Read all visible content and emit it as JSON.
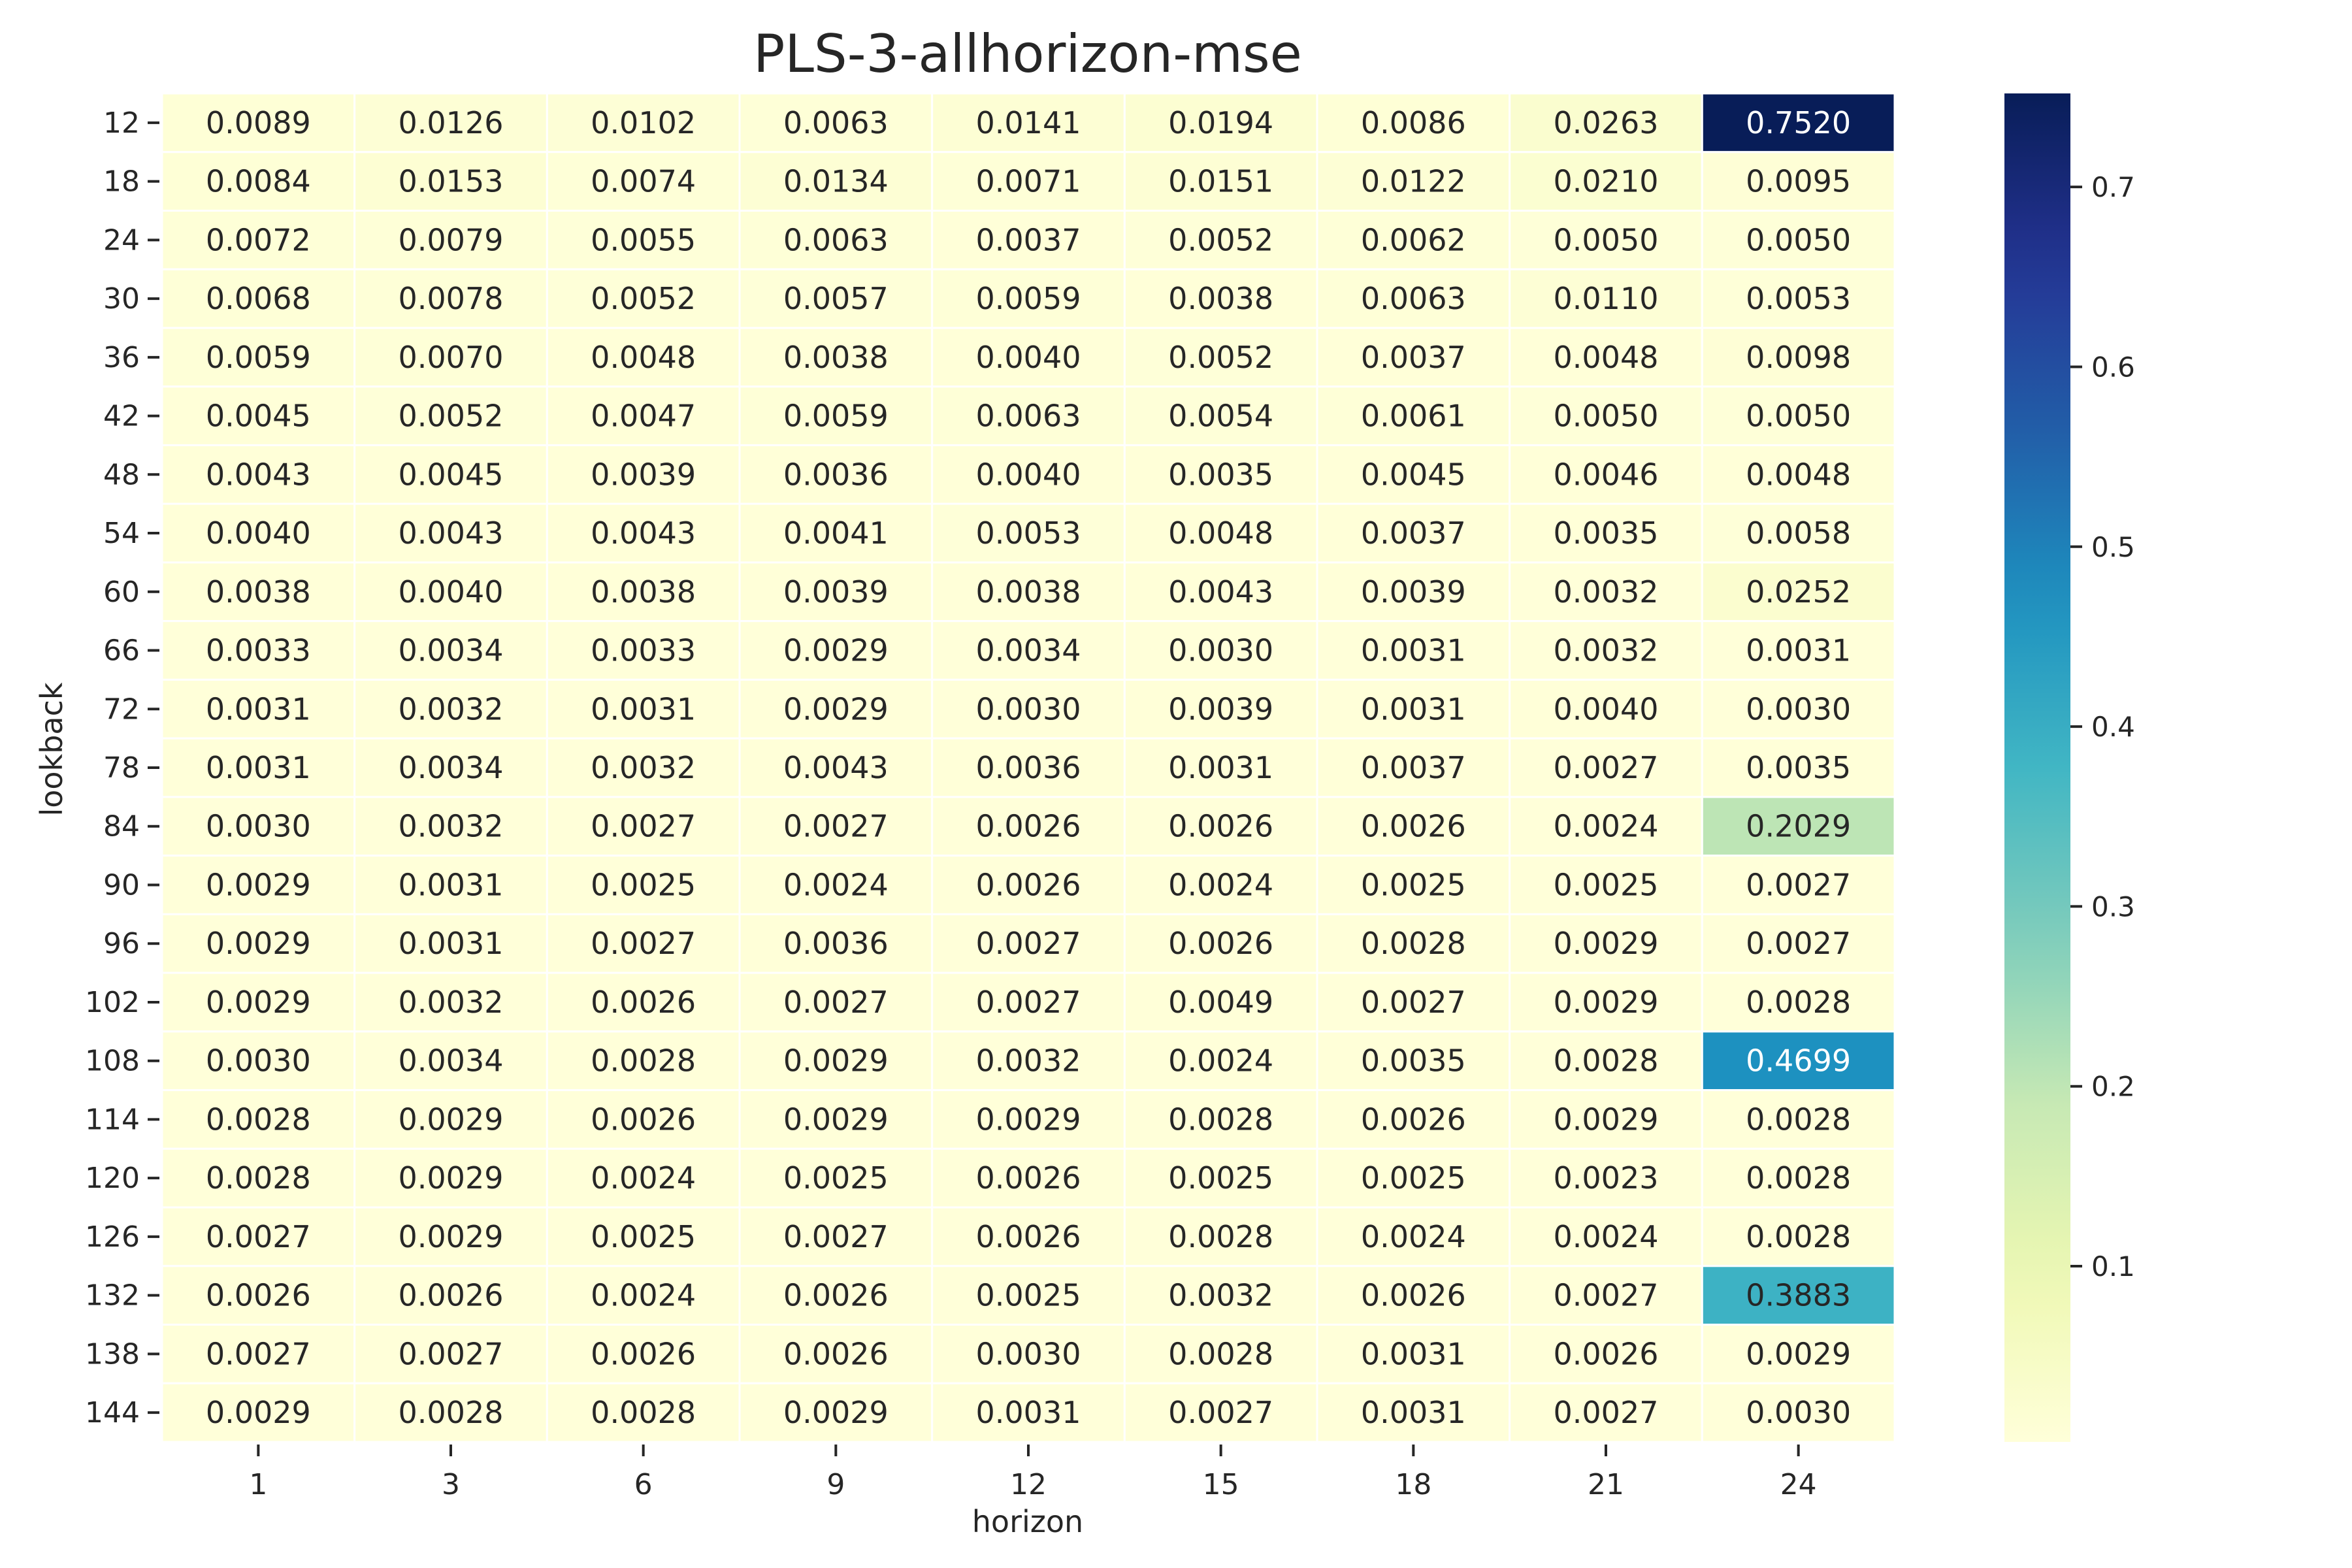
{
  "chart_data": {
    "type": "heatmap",
    "title": "PLS-3-allhorizon-mse",
    "xlabel": "horizon",
    "ylabel": "lookback",
    "x": [
      "1",
      "3",
      "6",
      "9",
      "12",
      "15",
      "18",
      "21",
      "24"
    ],
    "y": [
      "12",
      "18",
      "24",
      "30",
      "36",
      "42",
      "48",
      "54",
      "60",
      "66",
      "72",
      "78",
      "84",
      "90",
      "96",
      "102",
      "108",
      "114",
      "120",
      "126",
      "132",
      "138",
      "144"
    ],
    "values": [
      [
        0.0089,
        0.0126,
        0.0102,
        0.0063,
        0.0141,
        0.0194,
        0.0086,
        0.0263,
        0.752
      ],
      [
        0.0084,
        0.0153,
        0.0074,
        0.0134,
        0.0071,
        0.0151,
        0.0122,
        0.021,
        0.0095
      ],
      [
        0.0072,
        0.0079,
        0.0055,
        0.0063,
        0.0037,
        0.0052,
        0.0062,
        0.005,
        0.005
      ],
      [
        0.0068,
        0.0078,
        0.0052,
        0.0057,
        0.0059,
        0.0038,
        0.0063,
        0.011,
        0.0053
      ],
      [
        0.0059,
        0.007,
        0.0048,
        0.0038,
        0.004,
        0.0052,
        0.0037,
        0.0048,
        0.0098
      ],
      [
        0.0045,
        0.0052,
        0.0047,
        0.0059,
        0.0063,
        0.0054,
        0.0061,
        0.005,
        0.005
      ],
      [
        0.0043,
        0.0045,
        0.0039,
        0.0036,
        0.004,
        0.0035,
        0.0045,
        0.0046,
        0.0048
      ],
      [
        0.004,
        0.0043,
        0.0043,
        0.0041,
        0.0053,
        0.0048,
        0.0037,
        0.0035,
        0.0058
      ],
      [
        0.0038,
        0.004,
        0.0038,
        0.0039,
        0.0038,
        0.0043,
        0.0039,
        0.0032,
        0.0252
      ],
      [
        0.0033,
        0.0034,
        0.0033,
        0.0029,
        0.0034,
        0.003,
        0.0031,
        0.0032,
        0.0031
      ],
      [
        0.0031,
        0.0032,
        0.0031,
        0.0029,
        0.003,
        0.0039,
        0.0031,
        0.004,
        0.003
      ],
      [
        0.0031,
        0.0034,
        0.0032,
        0.0043,
        0.0036,
        0.0031,
        0.0037,
        0.0027,
        0.0035
      ],
      [
        0.003,
        0.0032,
        0.0027,
        0.0027,
        0.0026,
        0.0026,
        0.0026,
        0.0024,
        0.2029
      ],
      [
        0.0029,
        0.0031,
        0.0025,
        0.0024,
        0.0026,
        0.0024,
        0.0025,
        0.0025,
        0.0027
      ],
      [
        0.0029,
        0.0031,
        0.0027,
        0.0036,
        0.0027,
        0.0026,
        0.0028,
        0.0029,
        0.0027
      ],
      [
        0.0029,
        0.0032,
        0.0026,
        0.0027,
        0.0027,
        0.0049,
        0.0027,
        0.0029,
        0.0028
      ],
      [
        0.003,
        0.0034,
        0.0028,
        0.0029,
        0.0032,
        0.0024,
        0.0035,
        0.0028,
        0.4699
      ],
      [
        0.0028,
        0.0029,
        0.0026,
        0.0029,
        0.0029,
        0.0028,
        0.0026,
        0.0029,
        0.0028
      ],
      [
        0.0028,
        0.0029,
        0.0024,
        0.0025,
        0.0026,
        0.0025,
        0.0025,
        0.0023,
        0.0028
      ],
      [
        0.0027,
        0.0029,
        0.0025,
        0.0027,
        0.0026,
        0.0028,
        0.0024,
        0.0024,
        0.0028
      ],
      [
        0.0026,
        0.0026,
        0.0024,
        0.0026,
        0.0025,
        0.0032,
        0.0026,
        0.0027,
        0.3883
      ],
      [
        0.0027,
        0.0027,
        0.0026,
        0.0026,
        0.003,
        0.0028,
        0.0031,
        0.0026,
        0.0029
      ],
      [
        0.0029,
        0.0028,
        0.0028,
        0.0029,
        0.0031,
        0.0027,
        0.0031,
        0.0027,
        0.003
      ]
    ],
    "value_format": "4 decimals",
    "colormap": "YlGnBu",
    "vmin": 0.0023,
    "vmax": 0.752,
    "colorbar_ticks": [
      "0.1",
      "0.2",
      "0.3",
      "0.4",
      "0.5",
      "0.6",
      "0.7"
    ],
    "colorbar_tick_values": [
      0.1,
      0.2,
      0.3,
      0.4,
      0.5,
      0.6,
      0.7
    ],
    "legend": "colorbar at right"
  }
}
